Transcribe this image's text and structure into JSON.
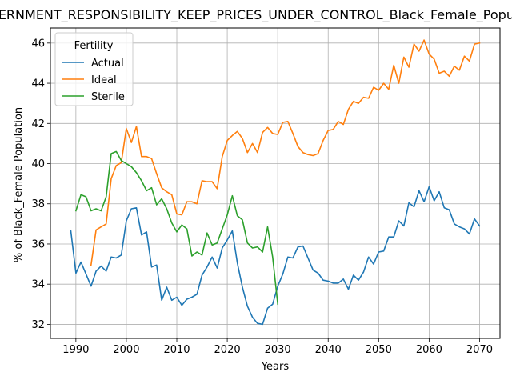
{
  "chart_data": {
    "type": "line",
    "title": "GOVERNMENT_RESPONSIBILITY_KEEP_PRICES_UNDER_CONTROL_Black_Female_Population",
    "xlabel": "Years",
    "ylabel": "% of Black_Female Population",
    "xlim": [
      1984.95,
      2074.05
    ],
    "ylim": [
      31.3,
      46.75
    ],
    "xticks": [
      1990,
      2000,
      2010,
      2020,
      2030,
      2040,
      2050,
      2060,
      2070
    ],
    "yticks": [
      32,
      34,
      36,
      38,
      40,
      42,
      44,
      46
    ],
    "grid": true,
    "legend": {
      "title": "Fertility",
      "placement": "top-left"
    },
    "series": [
      {
        "name": "Actual",
        "color": "#1f77b4",
        "x": [
          1989,
          1990,
          1991,
          1992,
          1993,
          1994,
          1995,
          1996,
          1997,
          1998,
          1999,
          2000,
          2001,
          2002,
          2003,
          2004,
          2005,
          2006,
          2007,
          2008,
          2009,
          2010,
          2011,
          2012,
          2013,
          2014,
          2015,
          2016,
          2017,
          2018,
          2019,
          2020,
          2021,
          2022,
          2023,
          2024,
          2025,
          2026,
          2027,
          2028,
          2029,
          2030,
          2031,
          2032,
          2033,
          2034,
          2035,
          2036,
          2037,
          2038,
          2039,
          2040,
          2041,
          2042,
          2043,
          2044,
          2045,
          2046,
          2047,
          2048,
          2049,
          2050,
          2051,
          2052,
          2053,
          2054,
          2055,
          2056,
          2057,
          2058,
          2059,
          2060,
          2061,
          2062,
          2063,
          2064,
          2065,
          2066,
          2067,
          2068,
          2069,
          2070
        ],
        "y": [
          36.65,
          34.55,
          35.1,
          34.5,
          33.9,
          34.65,
          34.9,
          34.65,
          35.35,
          35.3,
          35.45,
          37.15,
          37.75,
          37.8,
          36.45,
          36.6,
          34.85,
          34.95,
          33.2,
          33.85,
          33.2,
          33.35,
          32.95,
          33.25,
          33.35,
          33.5,
          34.45,
          34.85,
          35.35,
          34.8,
          35.8,
          36.2,
          36.65,
          35.05,
          33.85,
          32.9,
          32.35,
          32.05,
          32.0,
          32.8,
          33.0,
          33.9,
          34.5,
          35.35,
          35.3,
          35.85,
          35.9,
          35.3,
          34.7,
          34.55,
          34.2,
          34.15,
          34.05,
          34.05,
          34.25,
          33.75,
          34.45,
          34.2,
          34.6,
          35.35,
          35.0,
          35.6,
          35.65,
          36.35,
          36.35,
          37.15,
          36.9,
          38.05,
          37.85,
          38.65,
          38.1,
          38.85,
          38.15,
          38.6,
          37.8,
          37.7,
          37.0,
          36.85,
          36.75,
          36.5,
          37.25,
          36.9
        ]
      },
      {
        "name": "Ideal",
        "color": "#ff7f0e",
        "x": [
          1993,
          1994,
          1995,
          1996,
          1997,
          1998,
          1999,
          2000,
          2001,
          2002,
          2003,
          2004,
          2005,
          2006,
          2007,
          2008,
          2009,
          2010,
          2011,
          2012,
          2013,
          2014,
          2015,
          2016,
          2017,
          2018,
          2019,
          2020,
          2021,
          2022,
          2023,
          2024,
          2025,
          2026,
          2027,
          2028,
          2029,
          2030,
          2031,
          2032,
          2033,
          2034,
          2035,
          2036,
          2037,
          2038,
          2039,
          2040,
          2041,
          2042,
          2043,
          2044,
          2045,
          2046,
          2047,
          2048,
          2049,
          2050,
          2051,
          2052,
          2053,
          2054,
          2055,
          2056,
          2057,
          2058,
          2059,
          2060,
          2061,
          2062,
          2063,
          2064,
          2065,
          2066,
          2067,
          2068,
          2069,
          2070
        ],
        "y": [
          34.95,
          36.7,
          36.85,
          37.0,
          39.25,
          39.9,
          40.05,
          41.75,
          41.05,
          41.85,
          40.35,
          40.35,
          40.25,
          39.5,
          38.8,
          38.6,
          38.45,
          37.5,
          37.45,
          38.1,
          38.1,
          38.0,
          39.15,
          39.1,
          39.1,
          38.75,
          40.35,
          41.15,
          41.4,
          41.6,
          41.25,
          40.55,
          41.0,
          40.55,
          41.55,
          41.8,
          41.5,
          41.45,
          42.05,
          42.1,
          41.5,
          40.85,
          40.55,
          40.45,
          40.4,
          40.5,
          41.15,
          41.65,
          41.7,
          42.1,
          41.95,
          42.7,
          43.1,
          43.0,
          43.3,
          43.25,
          43.8,
          43.65,
          44.0,
          43.7,
          44.9,
          44.0,
          45.3,
          44.8,
          45.95,
          45.6,
          46.15,
          45.45,
          45.2,
          44.5,
          44.6,
          44.35,
          44.85,
          44.65,
          45.35,
          45.1,
          45.95,
          46.0
        ]
      },
      {
        "name": "Sterile",
        "color": "#2ca02c",
        "x": [
          1990,
          1991,
          1992,
          1993,
          1994,
          1995,
          1996,
          1997,
          1998,
          1999,
          2000,
          2001,
          2002,
          2003,
          2004,
          2005,
          2006,
          2007,
          2008,
          2009,
          2010,
          2011,
          2012,
          2013,
          2014,
          2015,
          2016,
          2017,
          2018,
          2019,
          2020,
          2021,
          2022,
          2023,
          2024,
          2025,
          2026,
          2027,
          2028,
          2029,
          2030
        ],
        "y": [
          37.65,
          38.45,
          38.35,
          37.65,
          37.75,
          37.65,
          38.35,
          40.5,
          40.6,
          40.15,
          40.0,
          39.85,
          39.55,
          39.15,
          38.65,
          38.8,
          37.95,
          38.25,
          37.75,
          37.05,
          36.6,
          36.95,
          36.75,
          35.4,
          35.6,
          35.45,
          36.55,
          35.95,
          36.05,
          36.75,
          37.45,
          38.4,
          37.4,
          37.2,
          36.05,
          35.8,
          35.85,
          35.6,
          36.85,
          35.35,
          33.0
        ]
      }
    ]
  }
}
